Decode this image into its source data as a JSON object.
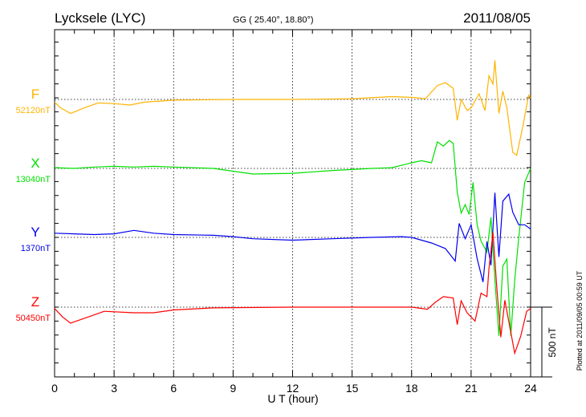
{
  "header": {
    "station": "Lycksele (LYC)",
    "coords": "GG ( 25.40°,  18.80°)",
    "date": "2011/08/05"
  },
  "footer": {
    "scale_label": "500 nT",
    "plotted": "Plotted at 2011/09/05 00:59 UT"
  },
  "chart_data": {
    "type": "line",
    "title": "Lycksele (LYC)",
    "xlabel": "U T (hour)",
    "ylabel": "",
    "xlim": [
      0,
      24
    ],
    "xticks": [
      "0",
      "3",
      "6",
      "9",
      "12",
      "15",
      "18",
      "21",
      "24"
    ],
    "scale_bar_nT": 500,
    "grid": true,
    "series": [
      {
        "name": "F",
        "baseline_label": "52120nT",
        "color": "#ffb300",
        "points": [
          [
            0,
            -20
          ],
          [
            0.3,
            -60
          ],
          [
            0.8,
            -100
          ],
          [
            1.5,
            -60
          ],
          [
            2.2,
            -25
          ],
          [
            3,
            -30
          ],
          [
            3.8,
            -40
          ],
          [
            4.5,
            -20
          ],
          [
            6,
            -5
          ],
          [
            9,
            0
          ],
          [
            12,
            0
          ],
          [
            15,
            5
          ],
          [
            17,
            20
          ],
          [
            18,
            15
          ],
          [
            18.7,
            5
          ],
          [
            19.3,
            100
          ],
          [
            19.7,
            120
          ],
          [
            20.1,
            80
          ],
          [
            20.3,
            -150
          ],
          [
            20.5,
            0
          ],
          [
            20.8,
            -80
          ],
          [
            21,
            -60
          ],
          [
            21.4,
            40
          ],
          [
            21.7,
            -80
          ],
          [
            21.9,
            170
          ],
          [
            22.1,
            110
          ],
          [
            22.2,
            280
          ],
          [
            22.4,
            -100
          ],
          [
            22.6,
            60
          ],
          [
            22.8,
            -60
          ],
          [
            23.1,
            -380
          ],
          [
            23.3,
            -400
          ],
          [
            23.6,
            -200
          ],
          [
            23.9,
            30
          ],
          [
            24,
            10
          ]
        ]
      },
      {
        "name": "X",
        "baseline_label": "13040nT",
        "color": "#00e000",
        "points": [
          [
            0,
            5
          ],
          [
            1,
            0
          ],
          [
            2,
            10
          ],
          [
            3,
            15
          ],
          [
            4,
            10
          ],
          [
            5,
            15
          ],
          [
            6,
            10
          ],
          [
            8,
            0
          ],
          [
            10,
            -40
          ],
          [
            12,
            -35
          ],
          [
            14,
            -15
          ],
          [
            16,
            0
          ],
          [
            17,
            5
          ],
          [
            18,
            40
          ],
          [
            18.5,
            55
          ],
          [
            19,
            40
          ],
          [
            19.3,
            190
          ],
          [
            19.6,
            160
          ],
          [
            19.9,
            200
          ],
          [
            20.1,
            180
          ],
          [
            20.3,
            -170
          ],
          [
            20.5,
            -320
          ],
          [
            20.7,
            -260
          ],
          [
            20.9,
            -330
          ],
          [
            21.1,
            -100
          ],
          [
            21.3,
            -400
          ],
          [
            21.5,
            -520
          ],
          [
            21.8,
            -600
          ],
          [
            22,
            -350
          ],
          [
            22.2,
            -800
          ],
          [
            22.4,
            -1200
          ],
          [
            22.6,
            -700
          ],
          [
            22.8,
            -650
          ],
          [
            23,
            -1200
          ],
          [
            23.2,
            -800
          ],
          [
            23.4,
            -500
          ],
          [
            23.7,
            -100
          ],
          [
            24,
            0
          ]
        ]
      },
      {
        "name": "Y",
        "baseline_label": "1370nT",
        "color": "#0000ee",
        "points": [
          [
            0,
            30
          ],
          [
            1,
            25
          ],
          [
            2,
            20
          ],
          [
            3,
            25
          ],
          [
            4,
            50
          ],
          [
            5,
            30
          ],
          [
            6,
            20
          ],
          [
            8,
            15
          ],
          [
            9,
            5
          ],
          [
            10,
            -10
          ],
          [
            12,
            -20
          ],
          [
            14,
            -10
          ],
          [
            16,
            0
          ],
          [
            17.5,
            5
          ],
          [
            18,
            0
          ],
          [
            19,
            -40
          ],
          [
            19.7,
            -80
          ],
          [
            20.2,
            -170
          ],
          [
            20.4,
            100
          ],
          [
            20.7,
            -10
          ],
          [
            21,
            90
          ],
          [
            21.3,
            -150
          ],
          [
            21.6,
            -320
          ],
          [
            21.8,
            -30
          ],
          [
            22,
            -200
          ],
          [
            22.2,
            320
          ],
          [
            22.4,
            -140
          ],
          [
            22.6,
            260
          ],
          [
            22.9,
            310
          ],
          [
            23.1,
            180
          ],
          [
            23.4,
            90
          ],
          [
            23.7,
            90
          ],
          [
            24,
            60
          ]
        ]
      },
      {
        "name": "Z",
        "baseline_label": "50450nT",
        "color": "#ff0000",
        "points": [
          [
            0,
            -10
          ],
          [
            0.4,
            -70
          ],
          [
            0.8,
            -115
          ],
          [
            1.5,
            -80
          ],
          [
            2.5,
            -30
          ],
          [
            4,
            -40
          ],
          [
            5,
            -40
          ],
          [
            6,
            -20
          ],
          [
            8,
            -5
          ],
          [
            12,
            0
          ],
          [
            15,
            0
          ],
          [
            18,
            0
          ],
          [
            18.8,
            -15
          ],
          [
            19.2,
            35
          ],
          [
            19.6,
            75
          ],
          [
            20.1,
            65
          ],
          [
            20.3,
            -125
          ],
          [
            20.5,
            45
          ],
          [
            20.8,
            -40
          ],
          [
            21.2,
            -100
          ],
          [
            21.5,
            100
          ],
          [
            21.8,
            75
          ],
          [
            21.9,
            275
          ],
          [
            22.1,
            535
          ],
          [
            22.3,
            130
          ],
          [
            22.5,
            -215
          ],
          [
            22.7,
            50
          ],
          [
            23,
            -180
          ],
          [
            23.2,
            -330
          ],
          [
            23.5,
            -210
          ],
          [
            23.8,
            -30
          ],
          [
            24,
            -10
          ]
        ]
      }
    ]
  }
}
